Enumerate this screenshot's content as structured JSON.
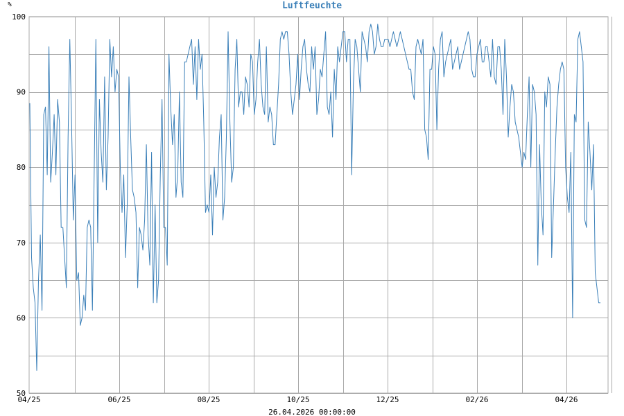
{
  "chart_data": {
    "type": "line",
    "title": "Luftfeuchte",
    "ylabel": "%",
    "xlabel": "26.04.2026 00:00:00",
    "ylim": [
      50,
      100
    ],
    "yticks": [
      50,
      60,
      70,
      80,
      90,
      100
    ],
    "x_tick_labels": [
      "04/25",
      "06/25",
      "08/25",
      "10/25",
      "12/25",
      "02/26",
      "04/26"
    ],
    "grid": true,
    "line_color": "#3a7fb8",
    "grid_color": "#a9a9a9",
    "series": [
      {
        "values": [
          88.5,
          68,
          64,
          62,
          53,
          65,
          71,
          61,
          87,
          88,
          79,
          96,
          78,
          82,
          87,
          79,
          89,
          86,
          72,
          72,
          68,
          64,
          84,
          97,
          86,
          73,
          79,
          65,
          66,
          59,
          60,
          63,
          61,
          72,
          73,
          72,
          61,
          79,
          97,
          70,
          89,
          82,
          78,
          92,
          77,
          84,
          97,
          92,
          96,
          90,
          93,
          92,
          80,
          74,
          79,
          68,
          75,
          92,
          84,
          77,
          76,
          74,
          64,
          72,
          71,
          69,
          73,
          83,
          71,
          67,
          82,
          62,
          75,
          62,
          65,
          79,
          89,
          72,
          72,
          67,
          95,
          88,
          83,
          87,
          76,
          79,
          90,
          78,
          76,
          94,
          94,
          95,
          96,
          97,
          91,
          96,
          89,
          97,
          93,
          95,
          86,
          74,
          75,
          74,
          79,
          71,
          80,
          76,
          78,
          84,
          87,
          73,
          76,
          84,
          98,
          86,
          78,
          80,
          93,
          97,
          88,
          90,
          90,
          87,
          92,
          91,
          88,
          95,
          94,
          87,
          89,
          94,
          97,
          91,
          88,
          87,
          96,
          86,
          88,
          87,
          83,
          83,
          87,
          91,
          97,
          98,
          97,
          98,
          98,
          95,
          90,
          87,
          89,
          91,
          95,
          89,
          93,
          96,
          97,
          93,
          91,
          90,
          96,
          93,
          96,
          87,
          89,
          93,
          92,
          95,
          98,
          88,
          87,
          90,
          84,
          93,
          89,
          96,
          94,
          96,
          98,
          98,
          94,
          97,
          97,
          79,
          91,
          97,
          96,
          93,
          90,
          98,
          97,
          96,
          94,
          98,
          99,
          98,
          95,
          96,
          99,
          97,
          96,
          96,
          97,
          97,
          97,
          96,
          97,
          98,
          97,
          96,
          97,
          98,
          97,
          96,
          95,
          94,
          93,
          93,
          90,
          89,
          96,
          97,
          96,
          95,
          97,
          85,
          84,
          81,
          93,
          93,
          96,
          95,
          85,
          93,
          97,
          98,
          92,
          94,
          95,
          96,
          97,
          93,
          94,
          95,
          96,
          93,
          94,
          95,
          96,
          97,
          98,
          97,
          93,
          92,
          92,
          95,
          96,
          97,
          94,
          94,
          96,
          96,
          94,
          92,
          97,
          92,
          91,
          96,
          96,
          93,
          87,
          97,
          92,
          84,
          88,
          91,
          90,
          86,
          85,
          84,
          82,
          80,
          82,
          81,
          87,
          92,
          80,
          91,
          90,
          87,
          67,
          83,
          75,
          71,
          90,
          88,
          92,
          91,
          68,
          75,
          82,
          88,
          91,
          93,
          94,
          93,
          80,
          76,
          74,
          82,
          60,
          87,
          86,
          97,
          98,
          96,
          94,
          73,
          72,
          86,
          82,
          77,
          83,
          66,
          64,
          62,
          62
        ]
      }
    ]
  }
}
